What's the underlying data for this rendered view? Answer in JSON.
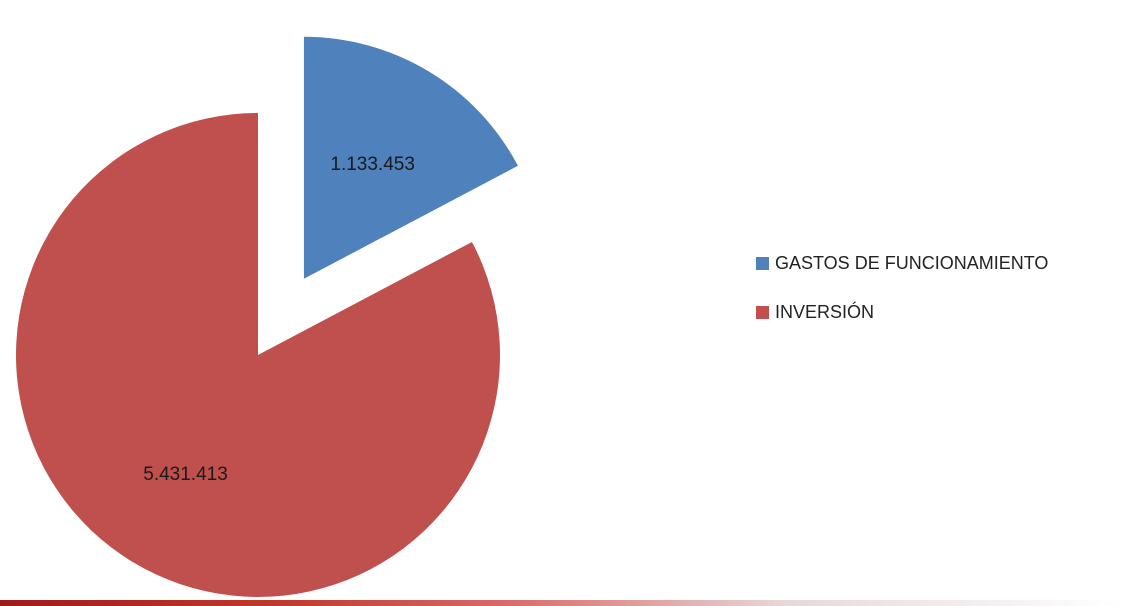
{
  "chart_data": {
    "type": "pie",
    "exploded": true,
    "legend_position": "right",
    "categories": [
      "GASTOS DE FUNCIONAMIENTO",
      "INVERSIÓN"
    ],
    "values": [
      1133453,
      5431413
    ],
    "data_labels": [
      "1.133.453",
      "5.431.413"
    ],
    "colors": [
      "#4f81bd",
      "#c0504d"
    ]
  }
}
